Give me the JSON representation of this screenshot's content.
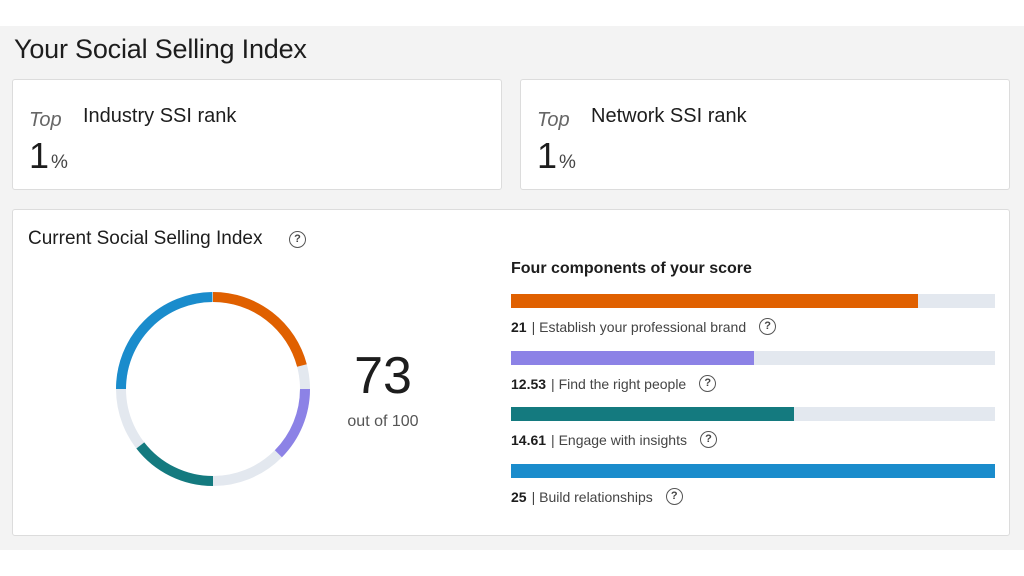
{
  "page": {
    "title": "Your Social Selling Index"
  },
  "ranks": [
    {
      "top_label": "Top",
      "title": "Industry SSI rank",
      "value": "1",
      "unit": "%"
    },
    {
      "top_label": "Top",
      "title": "Network SSI rank",
      "value": "1",
      "unit": "%"
    }
  ],
  "index": {
    "title": "Current Social Selling Index",
    "score": "73",
    "score_sub": "out of 100",
    "max": 100
  },
  "components": {
    "title": "Four components of your score",
    "max_each": 25,
    "items": [
      {
        "value": 21,
        "value_text": "21",
        "label": "| Establish your professional brand",
        "color": "#e06000"
      },
      {
        "value": 12.53,
        "value_text": "12.53",
        "label": "| Find the right people",
        "color": "#8c82e6"
      },
      {
        "value": 14.61,
        "value_text": "14.61",
        "label": "| Engage with insights",
        "color": "#147a7f"
      },
      {
        "value": 25,
        "value_text": "25",
        "label": "| Build relationships",
        "color": "#1a8ccc"
      }
    ],
    "track_color": "#e3e8ef"
  }
}
